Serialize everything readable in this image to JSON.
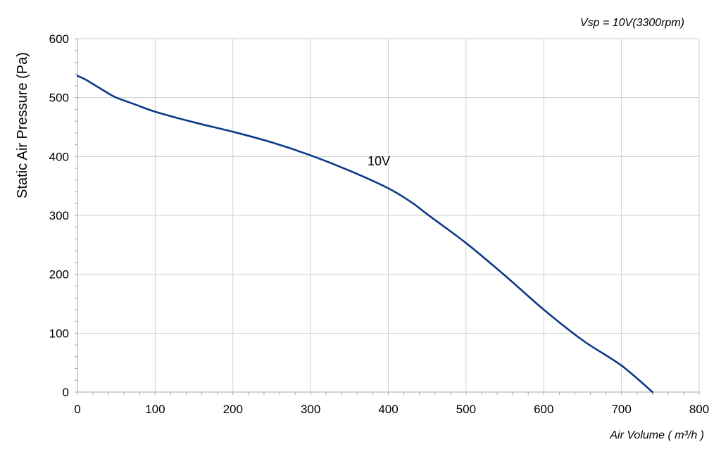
{
  "chart_data": {
    "type": "line",
    "title": "",
    "subtitle": "",
    "annotation": "Vsp = 10V(3300rpm)",
    "xlabel": "Air Volume ( m³/h )",
    "ylabel": "Static Air Pressure  (Pa)",
    "xlim": [
      0,
      800
    ],
    "ylim": [
      0,
      600
    ],
    "x_ticks": [
      "0",
      "100",
      "200",
      "300",
      "400",
      "500",
      "600",
      "700",
      "800"
    ],
    "y_ticks": [
      "0",
      "100",
      "200",
      "300",
      "400",
      "500",
      "600"
    ],
    "grid": true,
    "series": [
      {
        "name": "10V",
        "color": "#0b3a86",
        "x": [
          0,
          10,
          20,
          30,
          40,
          50,
          75,
          100,
          150,
          200,
          250,
          300,
          350,
          400,
          430,
          450,
          500,
          550,
          600,
          650,
          700,
          740
        ],
        "y": [
          537,
          531,
          523,
          515,
          507,
          500,
          488,
          476,
          458,
          442,
          424,
          402,
          376,
          346,
          322,
          302,
          253,
          198,
          140,
          88,
          45,
          0
        ]
      }
    ]
  }
}
